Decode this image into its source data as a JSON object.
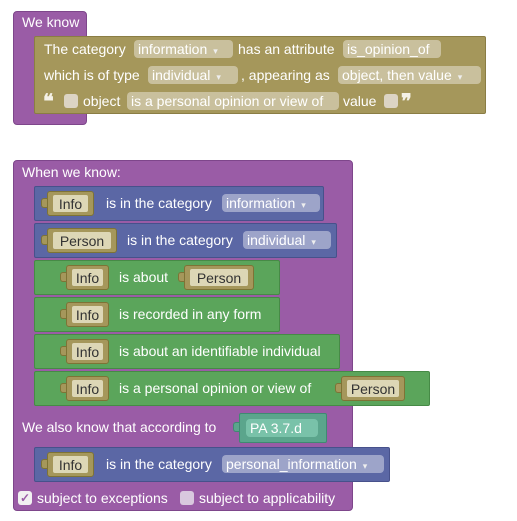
{
  "block1": {
    "header": "We know",
    "line1": {
      "prefix": "The category",
      "category": "information",
      "middle": "has an attribute",
      "attribute": "is_opinion_of"
    },
    "line2": {
      "prefix": "which is of type",
      "type": "individual",
      "middle": ", appearing as",
      "appearing": "object, then value"
    },
    "line3": {
      "object_label": "object",
      "opinion": "is a personal opinion or view of",
      "value_label": "value"
    }
  },
  "block2": {
    "header": "When we know:",
    "row1": {
      "var": "Info",
      "text": "is in the category",
      "category": "information"
    },
    "row2": {
      "var": "Person",
      "text": "is in the category",
      "category": "individual"
    },
    "row3": {
      "var": "Info",
      "text": "is about",
      "target": "Person"
    },
    "row4": {
      "var": "Info",
      "text": "is recorded in any form"
    },
    "row5": {
      "var": "Info",
      "text": "is about an identifiable individual"
    },
    "row6": {
      "var": "Info",
      "text": "is a personal opinion or view of",
      "target": "Person"
    },
    "also": {
      "text": "We also know that according to",
      "source": "PA 3.7.d"
    },
    "row7": {
      "var": "Info",
      "text": "is in the category",
      "category": "personal_information"
    },
    "footer": {
      "exceptions": "subject to exceptions",
      "applicability": "subject to applicability"
    }
  },
  "colors": {
    "purple": "#9a5ca6",
    "olive": "#a5975b",
    "blue": "#5b67a5",
    "green": "#5ba55b",
    "teal": "#5ba58c"
  },
  "icons": {
    "dropdown": "▾",
    "open_quote": "❝",
    "close_quote": "❞",
    "check": "✓"
  }
}
